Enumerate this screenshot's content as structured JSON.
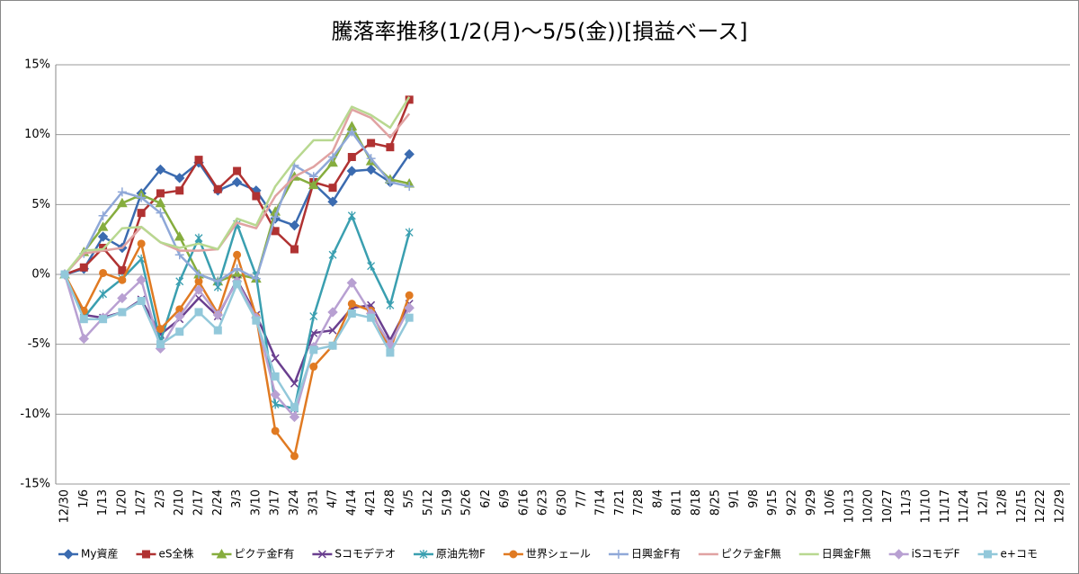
{
  "chart_data": {
    "type": "line",
    "title": "騰落率推移(1/2(月)～5/5(金))[損益ベース]",
    "categories": [
      "12/30",
      "1/6",
      "1/13",
      "1/20",
      "1/27",
      "2/3",
      "2/10",
      "2/17",
      "2/24",
      "3/3",
      "3/10",
      "3/17",
      "3/24",
      "3/31",
      "4/7",
      "4/14",
      "4/21",
      "4/28",
      "5/5",
      "5/12",
      "5/19",
      "5/26",
      "6/2",
      "6/9",
      "6/16",
      "6/23",
      "6/30",
      "7/7",
      "7/14",
      "7/21",
      "7/28",
      "8/4",
      "8/11",
      "8/18",
      "8/25",
      "9/1",
      "9/8",
      "9/15",
      "9/22",
      "9/29",
      "10/6",
      "10/13",
      "10/20",
      "10/27",
      "11/3",
      "11/10",
      "11/17",
      "11/24",
      "12/1",
      "12/8",
      "12/15",
      "12/22",
      "12/29"
    ],
    "ylim": [
      -15,
      15
    ],
    "yticks": [
      {
        "value": -15,
        "label": "-15%"
      },
      {
        "value": -10,
        "label": "-10%"
      },
      {
        "value": -5,
        "label": "-5%"
      },
      {
        "value": 0,
        "label": "0%"
      },
      {
        "value": 5,
        "label": "5%"
      },
      {
        "value": 10,
        "label": "10%"
      },
      {
        "value": 15,
        "label": "15%"
      }
    ],
    "grid": true,
    "legend": "bottom",
    "series": [
      {
        "name": "My資産",
        "color": "#3b6bb0",
        "marker": "diamond",
        "values": [
          0,
          0.4,
          2.7,
          1.9,
          5.8,
          7.5,
          6.9,
          8.0,
          6.0,
          6.6,
          6.0,
          4.0,
          3.5,
          6.5,
          5.2,
          7.4,
          7.5,
          6.6,
          8.6,
          null,
          null,
          null,
          null,
          null,
          null,
          null,
          null,
          null,
          null,
          null,
          null,
          null,
          null,
          null,
          null,
          null,
          null,
          null,
          null,
          null,
          null,
          null,
          null,
          null,
          null,
          null,
          null,
          null,
          null,
          null,
          null,
          null,
          null
        ]
      },
      {
        "name": "eS全株",
        "color": "#b03232",
        "marker": "square",
        "values": [
          0,
          0.5,
          1.9,
          0.3,
          4.4,
          5.8,
          6.0,
          8.2,
          6.1,
          7.4,
          5.6,
          3.1,
          1.8,
          6.6,
          6.2,
          8.4,
          9.4,
          9.1,
          12.5,
          null,
          null,
          null,
          null,
          null,
          null,
          null,
          null,
          null,
          null,
          null,
          null,
          null,
          null,
          null,
          null,
          null,
          null,
          null,
          null,
          null,
          null,
          null,
          null,
          null,
          null,
          null,
          null,
          null,
          null,
          null,
          null,
          null,
          null
        ]
      },
      {
        "name": "ピクテ金F有",
        "color": "#86ad3e",
        "marker": "triangle",
        "values": [
          0,
          1.6,
          3.4,
          5.1,
          5.7,
          5.1,
          2.7,
          0.0,
          -0.5,
          0.0,
          -0.3,
          4.5,
          7.0,
          6.4,
          8.0,
          10.6,
          8.1,
          6.8,
          6.5,
          null,
          null,
          null,
          null,
          null,
          null,
          null,
          null,
          null,
          null,
          null,
          null,
          null,
          null,
          null,
          null,
          null,
          null,
          null,
          null,
          null,
          null,
          null,
          null,
          null,
          null,
          null,
          null,
          null,
          null,
          null,
          null,
          null,
          null
        ]
      },
      {
        "name": "Sコモデテオ",
        "color": "#6a3f8f",
        "marker": "x",
        "values": [
          0,
          -2.9,
          -3.1,
          -2.7,
          -1.8,
          -4.3,
          -3.2,
          -1.7,
          -3.0,
          -0.4,
          -2.9,
          -6.0,
          -7.8,
          -4.2,
          -4.0,
          -2.4,
          -2.2,
          -4.7,
          -2.1,
          null,
          null,
          null,
          null,
          null,
          null,
          null,
          null,
          null,
          null,
          null,
          null,
          null,
          null,
          null,
          null,
          null,
          null,
          null,
          null,
          null,
          null,
          null,
          null,
          null,
          null,
          null,
          null,
          null,
          null,
          null,
          null,
          null,
          null
        ]
      },
      {
        "name": "原油先物F",
        "color": "#3a9fb0",
        "marker": "star",
        "values": [
          0,
          -3.1,
          -1.4,
          -0.3,
          1.1,
          -4.8,
          -0.5,
          2.6,
          -0.9,
          3.6,
          -0.1,
          -9.3,
          -9.6,
          -3.0,
          1.4,
          4.2,
          0.6,
          -2.2,
          3.0,
          null,
          null,
          null,
          null,
          null,
          null,
          null,
          null,
          null,
          null,
          null,
          null,
          null,
          null,
          null,
          null,
          null,
          null,
          null,
          null,
          null,
          null,
          null,
          null,
          null,
          null,
          null,
          null,
          null,
          null,
          null,
          null,
          null,
          null
        ]
      },
      {
        "name": "世界シェール",
        "color": "#e07a22",
        "marker": "circle",
        "values": [
          0,
          -2.6,
          0.1,
          -0.4,
          2.2,
          -3.9,
          -2.5,
          -0.5,
          -2.8,
          1.4,
          -3.0,
          -11.2,
          -13.0,
          -6.6,
          -5.1,
          -2.1,
          -2.6,
          -5.4,
          -1.5,
          null,
          null,
          null,
          null,
          null,
          null,
          null,
          null,
          null,
          null,
          null,
          null,
          null,
          null,
          null,
          null,
          null,
          null,
          null,
          null,
          null,
          null,
          null,
          null,
          null,
          null,
          null,
          null,
          null,
          null,
          null,
          null,
          null,
          null
        ]
      },
      {
        "name": "日興金F有",
        "color": "#8fa8d8",
        "marker": "plus",
        "values": [
          0,
          1.5,
          4.2,
          5.9,
          5.5,
          4.4,
          1.4,
          0.0,
          -0.5,
          0.4,
          -0.3,
          4.1,
          7.8,
          7.0,
          8.4,
          10.2,
          8.3,
          6.6,
          6.3,
          null,
          null,
          null,
          null,
          null,
          null,
          null,
          null,
          null,
          null,
          null,
          null,
          null,
          null,
          null,
          null,
          null,
          null,
          null,
          null,
          null,
          null,
          null,
          null,
          null,
          null,
          null,
          null,
          null,
          null,
          null,
          null,
          null,
          null
        ]
      },
      {
        "name": "ピクテ金F無",
        "color": "#e0a2a2",
        "marker": "none",
        "values": [
          0,
          1.5,
          1.7,
          1.9,
          3.4,
          2.3,
          1.7,
          1.7,
          1.8,
          3.7,
          3.3,
          5.6,
          7.0,
          7.7,
          8.8,
          11.8,
          11.2,
          9.8,
          11.5,
          null,
          null,
          null,
          null,
          null,
          null,
          null,
          null,
          null,
          null,
          null,
          null,
          null,
          null,
          null,
          null,
          null,
          null,
          null,
          null,
          null,
          null,
          null,
          null,
          null,
          null,
          null,
          null,
          null,
          null,
          null,
          null,
          null,
          null
        ]
      },
      {
        "name": "日興金F無",
        "color": "#b8d890",
        "marker": "none",
        "values": [
          0,
          1.7,
          1.8,
          3.3,
          3.4,
          2.3,
          1.9,
          2.2,
          1.8,
          4.0,
          3.5,
          6.3,
          8.1,
          9.6,
          9.6,
          12.0,
          11.4,
          10.5,
          12.7,
          null,
          null,
          null,
          null,
          null,
          null,
          null,
          null,
          null,
          null,
          null,
          null,
          null,
          null,
          null,
          null,
          null,
          null,
          null,
          null,
          null,
          null,
          null,
          null,
          null,
          null,
          null,
          null,
          null,
          null,
          null,
          null,
          null,
          null
        ]
      },
      {
        "name": "iSコモデF",
        "color": "#b8a0d2",
        "marker": "diamond",
        "values": [
          0,
          -4.6,
          -3.1,
          -1.7,
          -0.4,
          -5.3,
          -3.0,
          -1.1,
          -2.9,
          -0.5,
          -3.1,
          -8.6,
          -10.2,
          -5.2,
          -2.7,
          -0.6,
          -2.8,
          -5.0,
          -2.4,
          null,
          null,
          null,
          null,
          null,
          null,
          null,
          null,
          null,
          null,
          null,
          null,
          null,
          null,
          null,
          null,
          null,
          null,
          null,
          null,
          null,
          null,
          null,
          null,
          null,
          null,
          null,
          null,
          null,
          null,
          null,
          null,
          null,
          null
        ]
      },
      {
        "name": "e+コモ",
        "color": "#92c8da",
        "marker": "square",
        "values": [
          0,
          -3.2,
          -3.2,
          -2.7,
          -1.9,
          -5.0,
          -4.1,
          -2.7,
          -4.0,
          -0.7,
          -3.3,
          -7.3,
          -9.5,
          -5.4,
          -5.1,
          -2.8,
          -3.1,
          -5.6,
          -3.1,
          null,
          null,
          null,
          null,
          null,
          null,
          null,
          null,
          null,
          null,
          null,
          null,
          null,
          null,
          null,
          null,
          null,
          null,
          null,
          null,
          null,
          null,
          null,
          null,
          null,
          null,
          null,
          null,
          null,
          null,
          null,
          null,
          null,
          null
        ]
      }
    ]
  }
}
